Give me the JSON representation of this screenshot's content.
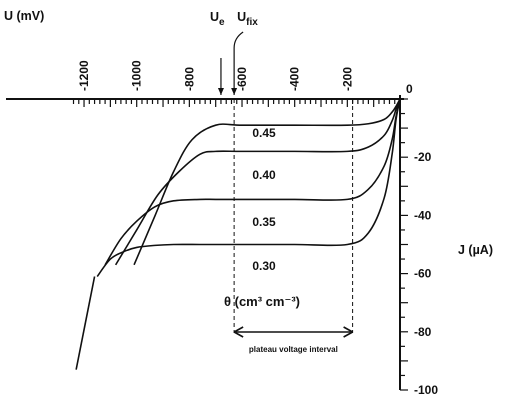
{
  "chart_data": {
    "type": "line",
    "x_axis": {
      "label": "U (mV)",
      "range": [
        -1200,
        0
      ],
      "ticks": [
        -1200,
        -1000,
        -800,
        -600,
        -400,
        -200
      ]
    },
    "y_axis": {
      "label": "J (µA)",
      "range": [
        -100,
        0
      ],
      "ticks": [
        -20,
        -40,
        -60,
        -80,
        -100
      ]
    },
    "origin_label": "0",
    "annotations": {
      "u_e": {
        "label_base": "U",
        "label_sub": "e",
        "x": -680
      },
      "u_fix": {
        "label_base": "U",
        "label_sub": "fix",
        "x": -630
      },
      "u_upper": -180,
      "theta_label": "θ (cm³ cm⁻³)",
      "plateau_label": "plateau voltage interval"
    },
    "series": [
      {
        "name": "0.45",
        "x": [
          -1010,
          -930,
          -860,
          -790,
          -700,
          -600,
          -400,
          -200,
          -120,
          -60,
          -30,
          -15,
          0
        ],
        "y": [
          -57,
          -40,
          -25,
          -14,
          -9,
          -9,
          -9,
          -9,
          -8.5,
          -7,
          -4.5,
          -2.5,
          0
        ]
      },
      {
        "name": "0.40",
        "x": [
          -1080,
          -1000,
          -920,
          -840,
          -760,
          -700,
          -600,
          -400,
          -200,
          -120,
          -60,
          -30,
          -15,
          0
        ],
        "y": [
          -57,
          -45,
          -33,
          -25,
          -19,
          -18,
          -18,
          -18,
          -18,
          -16.5,
          -12.5,
          -7.5,
          -3.5,
          0
        ]
      },
      {
        "name": "0.35",
        "x": [
          -1120,
          -1060,
          -1000,
          -930,
          -860,
          -760,
          -700,
          -600,
          -400,
          -200,
          -120,
          -60,
          -30,
          -15,
          0
        ],
        "y": [
          -57,
          -48,
          -42,
          -37,
          -35,
          -34.5,
          -34.5,
          -34.5,
          -34.5,
          -34.5,
          -31,
          -23,
          -14,
          -6,
          0
        ]
      },
      {
        "name": "0.30",
        "x": [
          -1150,
          -1100,
          -1050,
          -1000,
          -930,
          -860,
          -760,
          -700,
          -600,
          -400,
          -200,
          -120,
          -60,
          -30,
          -15,
          0
        ],
        "y": [
          -61,
          -55,
          -52.5,
          -51,
          -50.3,
          -50,
          -50,
          -50,
          -50,
          -50,
          -50,
          -46,
          -34,
          -19,
          -7,
          0
        ]
      },
      {
        "name": "",
        "x": [
          -1230,
          -1160
        ],
        "y": [
          -93,
          -61
        ]
      }
    ]
  }
}
